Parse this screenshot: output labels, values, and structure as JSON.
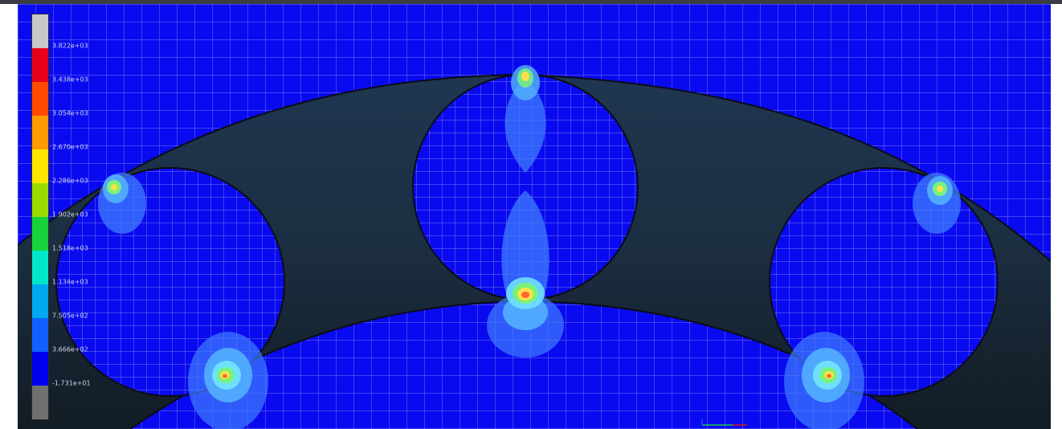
{
  "legend": {
    "labels": [
      "3.822e+03",
      "3.438e+03",
      "3.054e+03",
      "2.670e+03",
      "2.286e+03",
      "1.902e+03",
      "1.518e+03",
      "1.134e+03",
      "7.505e+02",
      "3.666e+02",
      "-1.731e+01"
    ],
    "colors": [
      "#c8c8c8",
      "#e8001a",
      "#ff4a00",
      "#ff9a00",
      "#ffe600",
      "#9bdc00",
      "#18d23c",
      "#00e6c8",
      "#00a8f0",
      "#1060ff",
      "#0000f0",
      "#707070"
    ]
  },
  "scene": {
    "background_colors": [
      "#1f3a56",
      "#121c24"
    ],
    "mesh_color": "#0a0af0",
    "grid_color": "#bcc6f0",
    "halo_colors": [
      "#3f7cff",
      "#55b5ff",
      "#6fe0ff",
      "#7af27a",
      "#ffe04a",
      "#ff6a2a"
    ]
  },
  "axis_triad": {
    "icon": "xyz-axis-triad-icon",
    "colors": [
      "#18c84a",
      "#d81a1a",
      "#2050ff"
    ]
  }
}
